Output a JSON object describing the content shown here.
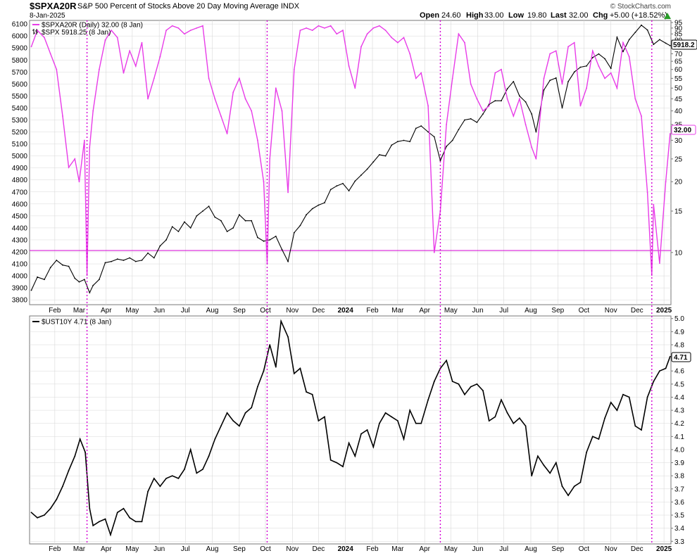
{
  "header": {
    "symbol": "$SPXA20R",
    "description": "S&P 500 Percent of Stocks Above 20 Day Moving Average INDX",
    "date": "8-Jan-2025",
    "open_label": "Open",
    "open_value": "24.60",
    "high_label": "High",
    "high_value": "33.00",
    "low_label": "Low",
    "low_value": "19.80",
    "last_label": "Last",
    "last_value": "32.00",
    "chg_label": "Chg",
    "chg_value": "+5.00 (+18.52%)",
    "watermark": "© StockCharts.com"
  },
  "colors": {
    "breadth": "#e83ce8",
    "price": "#000000",
    "grid": "#d8d8d8",
    "marker": "#d400d4",
    "frame": "#777777"
  },
  "chart_data": [
    {
      "type": "line",
      "panel": "top",
      "legend": [
        {
          "name": "$SPXA20R (Daily) 32.00 (8 Jan)",
          "color": "#e83ce8"
        },
        {
          "name": "$SPX 5918.25 (8 Jan)",
          "color": "#000000"
        }
      ],
      "x_tick_labels": [
        "Feb",
        "Mar",
        "Apr",
        "May",
        "Jun",
        "Jul",
        "Aug",
        "Sep",
        "Oct",
        "Nov",
        "Dec",
        "2024",
        "Feb",
        "Mar",
        "Apr",
        "May",
        "Jun",
        "Jul",
        "Aug",
        "Sep",
        "Oct",
        "Nov",
        "Dec",
        "2025"
      ],
      "left_axis": {
        "ticks": [
          3800,
          3900,
          4000,
          4100,
          4200,
          4300,
          4400,
          4500,
          4600,
          4700,
          4800,
          4900,
          5000,
          5100,
          5200,
          5300,
          5400,
          5500,
          5600,
          5700,
          5800,
          5900,
          6000,
          6100
        ],
        "ylim": [
          3760,
          6130
        ]
      },
      "right_axis": {
        "scale": "log",
        "ticks": [
          10,
          15,
          20,
          25,
          30,
          35,
          40,
          45,
          50,
          55,
          60,
          65,
          70,
          75,
          80,
          85,
          90,
          95
        ],
        "ylim": [
          6,
          97
        ]
      },
      "last_labels": {
        "price": "5918.2",
        "breadth": "32.00"
      },
      "horizontal_line": {
        "axis": "right",
        "value": 10.2
      },
      "series": [
        {
          "name": "$SPXA20R",
          "x": [
            "2023-01-05",
            "2023-01-12",
            "2023-01-20",
            "2023-01-27",
            "2023-02-03",
            "2023-02-10",
            "2023-02-17",
            "2023-02-24",
            "2023-03-01",
            "2023-03-07",
            "2023-03-10",
            "2023-03-13",
            "2023-03-17",
            "2023-03-24",
            "2023-03-31",
            "2023-04-07",
            "2023-04-14",
            "2023-04-21",
            "2023-04-28",
            "2023-05-05",
            "2023-05-12",
            "2023-05-19",
            "2023-05-26",
            "2023-06-02",
            "2023-06-09",
            "2023-06-16",
            "2023-06-23",
            "2023-06-30",
            "2023-07-07",
            "2023-07-14",
            "2023-07-21",
            "2023-07-28",
            "2023-08-04",
            "2023-08-11",
            "2023-08-18",
            "2023-08-25",
            "2023-09-01",
            "2023-09-08",
            "2023-09-15",
            "2023-09-22",
            "2023-09-29",
            "2023-10-03",
            "2023-10-06",
            "2023-10-13",
            "2023-10-20",
            "2023-10-27",
            "2023-11-03",
            "2023-11-10",
            "2023-11-17",
            "2023-11-24",
            "2023-12-01",
            "2023-12-08",
            "2023-12-15",
            "2023-12-22",
            "2023-12-29",
            "2024-01-05",
            "2024-01-12",
            "2024-01-19",
            "2024-01-26",
            "2024-02-02",
            "2024-02-09",
            "2024-02-16",
            "2024-02-23",
            "2024-03-01",
            "2024-03-08",
            "2024-03-15",
            "2024-03-22",
            "2024-03-28",
            "2024-04-05",
            "2024-04-12",
            "2024-04-19",
            "2024-04-26",
            "2024-05-03",
            "2024-05-10",
            "2024-05-17",
            "2024-05-24",
            "2024-05-31",
            "2024-06-07",
            "2024-06-14",
            "2024-06-21",
            "2024-06-28",
            "2024-07-05",
            "2024-07-12",
            "2024-07-19",
            "2024-07-26",
            "2024-08-02",
            "2024-08-07",
            "2024-08-16",
            "2024-08-23",
            "2024-08-30",
            "2024-09-06",
            "2024-09-13",
            "2024-09-20",
            "2024-09-27",
            "2024-10-04",
            "2024-10-11",
            "2024-10-18",
            "2024-10-25",
            "2024-11-01",
            "2024-11-08",
            "2024-11-15",
            "2024-11-22",
            "2024-11-29",
            "2024-12-06",
            "2024-12-13",
            "2024-12-18",
            "2024-12-20",
            "2024-12-27",
            "2025-01-03",
            "2025-01-08"
          ],
          "values": [
            75,
            88,
            82,
            70,
            60,
            38,
            23,
            25,
            20,
            30,
            8,
            28,
            40,
            60,
            80,
            88,
            82,
            58,
            72,
            62,
            78,
            45,
            55,
            68,
            88,
            92,
            90,
            85,
            88,
            90,
            92,
            55,
            45,
            38,
            32,
            48,
            55,
            45,
            40,
            30,
            20,
            9,
            25,
            50,
            40,
            18,
            60,
            88,
            90,
            88,
            92,
            90,
            92,
            85,
            88,
            62,
            50,
            75,
            85,
            90,
            92,
            88,
            82,
            78,
            82,
            70,
            55,
            58,
            42,
            10,
            15,
            35,
            55,
            85,
            78,
            52,
            45,
            40,
            42,
            58,
            60,
            45,
            38,
            45,
            35,
            28,
            25,
            55,
            70,
            72,
            52,
            75,
            78,
            42,
            50,
            72,
            62,
            55,
            58,
            50,
            78,
            68,
            45,
            38,
            18,
            8,
            16,
            9,
            20,
            32
          ]
        },
        {
          "name": "$SPX",
          "x": [
            "2023-01-05",
            "2023-01-12",
            "2023-01-20",
            "2023-01-27",
            "2023-02-03",
            "2023-02-10",
            "2023-02-17",
            "2023-02-24",
            "2023-03-01",
            "2023-03-07",
            "2023-03-13",
            "2023-03-17",
            "2023-03-24",
            "2023-03-31",
            "2023-04-07",
            "2023-04-14",
            "2023-04-21",
            "2023-04-28",
            "2023-05-05",
            "2023-05-12",
            "2023-05-19",
            "2023-05-26",
            "2023-06-02",
            "2023-06-09",
            "2023-06-16",
            "2023-06-23",
            "2023-06-30",
            "2023-07-07",
            "2023-07-14",
            "2023-07-21",
            "2023-07-28",
            "2023-08-04",
            "2023-08-11",
            "2023-08-18",
            "2023-08-25",
            "2023-09-01",
            "2023-09-08",
            "2023-09-15",
            "2023-09-22",
            "2023-09-29",
            "2023-10-06",
            "2023-10-13",
            "2023-10-20",
            "2023-10-27",
            "2023-11-03",
            "2023-11-10",
            "2023-11-17",
            "2023-11-24",
            "2023-12-01",
            "2023-12-08",
            "2023-12-15",
            "2023-12-22",
            "2023-12-29",
            "2024-01-05",
            "2024-01-12",
            "2024-01-19",
            "2024-01-26",
            "2024-02-02",
            "2024-02-09",
            "2024-02-16",
            "2024-02-23",
            "2024-03-01",
            "2024-03-08",
            "2024-03-15",
            "2024-03-22",
            "2024-03-28",
            "2024-04-05",
            "2024-04-12",
            "2024-04-19",
            "2024-04-26",
            "2024-05-03",
            "2024-05-10",
            "2024-05-17",
            "2024-05-24",
            "2024-05-31",
            "2024-06-07",
            "2024-06-14",
            "2024-06-21",
            "2024-06-28",
            "2024-07-05",
            "2024-07-12",
            "2024-07-19",
            "2024-07-26",
            "2024-08-02",
            "2024-08-07",
            "2024-08-16",
            "2024-08-23",
            "2024-08-30",
            "2024-09-06",
            "2024-09-13",
            "2024-09-20",
            "2024-09-27",
            "2024-10-04",
            "2024-10-11",
            "2024-10-18",
            "2024-10-25",
            "2024-11-01",
            "2024-11-08",
            "2024-11-15",
            "2024-11-22",
            "2024-11-29",
            "2024-12-06",
            "2024-12-13",
            "2024-12-20",
            "2024-12-27",
            "2025-01-03",
            "2025-01-08"
          ],
          "values": [
            3880,
            3990,
            3970,
            4070,
            4130,
            4090,
            4080,
            3980,
            3950,
            3970,
            3860,
            3920,
            3970,
            4110,
            4120,
            4140,
            4130,
            4150,
            4120,
            4130,
            4190,
            4150,
            4250,
            4300,
            4410,
            4370,
            4450,
            4400,
            4500,
            4540,
            4580,
            4490,
            4460,
            4370,
            4400,
            4510,
            4460,
            4460,
            4320,
            4290,
            4300,
            4330,
            4220,
            4120,
            4360,
            4420,
            4510,
            4560,
            4590,
            4610,
            4720,
            4750,
            4770,
            4710,
            4790,
            4840,
            4890,
            4950,
            5010,
            5000,
            5090,
            5120,
            5130,
            5120,
            5230,
            5250,
            5200,
            5160,
            4960,
            5080,
            5130,
            5220,
            5300,
            5310,
            5280,
            5350,
            5430,
            5460,
            5460,
            5560,
            5620,
            5500,
            5450,
            5350,
            5200,
            5550,
            5630,
            5650,
            5400,
            5620,
            5700,
            5740,
            5750,
            5820,
            5850,
            5810,
            5730,
            5990,
            5870,
            5970,
            6030,
            6090,
            6050,
            5930,
            5970,
            5940,
            5920
          ]
        }
      ]
    },
    {
      "type": "line",
      "panel": "bottom",
      "legend": [
        {
          "name": "$UST10Y 4.71 (8 Jan)",
          "color": "#000000"
        }
      ],
      "x_tick_labels": [
        "Feb",
        "Mar",
        "Apr",
        "May",
        "Jun",
        "Jul",
        "Aug",
        "Sep",
        "Oct",
        "Nov",
        "Dec",
        "2024",
        "Feb",
        "Mar",
        "Apr",
        "May",
        "Jun",
        "Jul",
        "Aug",
        "Sep",
        "Oct",
        "Nov",
        "Dec",
        "2025"
      ],
      "right_axis": {
        "ticks": [
          3.3,
          3.4,
          3.5,
          3.6,
          3.7,
          3.8,
          3.9,
          4.0,
          4.1,
          4.2,
          4.3,
          4.4,
          4.5,
          4.6,
          4.7,
          4.8,
          4.9,
          5.0
        ],
        "ylim": [
          3.28,
          5.02
        ]
      },
      "last_label": "4.71",
      "series": [
        {
          "name": "$UST10Y",
          "x": [
            "2023-01-05",
            "2023-01-12",
            "2023-01-20",
            "2023-01-27",
            "2023-02-03",
            "2023-02-10",
            "2023-02-17",
            "2023-02-24",
            "2023-03-02",
            "2023-03-08",
            "2023-03-13",
            "2023-03-17",
            "2023-03-24",
            "2023-03-31",
            "2023-04-06",
            "2023-04-14",
            "2023-04-21",
            "2023-04-28",
            "2023-05-05",
            "2023-05-12",
            "2023-05-19",
            "2023-05-26",
            "2023-06-02",
            "2023-06-09",
            "2023-06-16",
            "2023-06-23",
            "2023-06-30",
            "2023-07-07",
            "2023-07-14",
            "2023-07-21",
            "2023-07-28",
            "2023-08-04",
            "2023-08-11",
            "2023-08-18",
            "2023-08-25",
            "2023-09-01",
            "2023-09-08",
            "2023-09-15",
            "2023-09-22",
            "2023-09-29",
            "2023-10-06",
            "2023-10-13",
            "2023-10-19",
            "2023-10-27",
            "2023-11-03",
            "2023-11-10",
            "2023-11-17",
            "2023-11-24",
            "2023-12-01",
            "2023-12-08",
            "2023-12-15",
            "2023-12-22",
            "2023-12-29",
            "2024-01-05",
            "2024-01-12",
            "2024-01-19",
            "2024-01-26",
            "2024-02-02",
            "2024-02-09",
            "2024-02-16",
            "2024-02-23",
            "2024-03-01",
            "2024-03-08",
            "2024-03-15",
            "2024-03-22",
            "2024-03-28",
            "2024-04-05",
            "2024-04-12",
            "2024-04-19",
            "2024-04-26",
            "2024-05-03",
            "2024-05-10",
            "2024-05-17",
            "2024-05-24",
            "2024-05-31",
            "2024-06-07",
            "2024-06-14",
            "2024-06-21",
            "2024-06-28",
            "2024-07-05",
            "2024-07-12",
            "2024-07-19",
            "2024-07-26",
            "2024-08-02",
            "2024-08-09",
            "2024-08-16",
            "2024-08-23",
            "2024-08-30",
            "2024-09-06",
            "2024-09-13",
            "2024-09-20",
            "2024-09-27",
            "2024-10-04",
            "2024-10-11",
            "2024-10-18",
            "2024-10-25",
            "2024-11-01",
            "2024-11-08",
            "2024-11-15",
            "2024-11-22",
            "2024-11-29",
            "2024-12-06",
            "2024-12-13",
            "2024-12-20",
            "2024-12-27",
            "2025-01-03",
            "2025-01-08"
          ],
          "values": [
            3.52,
            3.48,
            3.5,
            3.55,
            3.62,
            3.72,
            3.84,
            3.95,
            4.08,
            3.98,
            3.55,
            3.42,
            3.45,
            3.47,
            3.35,
            3.52,
            3.55,
            3.48,
            3.45,
            3.45,
            3.68,
            3.78,
            3.72,
            3.78,
            3.8,
            3.78,
            3.85,
            4.0,
            3.82,
            3.85,
            3.95,
            4.08,
            4.18,
            4.28,
            4.22,
            4.18,
            4.28,
            4.32,
            4.48,
            4.6,
            4.8,
            4.63,
            4.98,
            4.86,
            4.58,
            4.62,
            4.44,
            4.42,
            4.22,
            4.25,
            3.92,
            3.9,
            3.87,
            4.05,
            3.95,
            4.12,
            4.15,
            4.02,
            4.2,
            4.28,
            4.25,
            4.22,
            4.08,
            4.3,
            4.2,
            4.2,
            4.38,
            4.52,
            4.62,
            4.68,
            4.52,
            4.5,
            4.42,
            4.48,
            4.5,
            4.45,
            4.22,
            4.25,
            4.38,
            4.28,
            4.2,
            4.24,
            4.18,
            3.8,
            3.95,
            3.88,
            3.82,
            3.9,
            3.72,
            3.65,
            3.72,
            3.75,
            3.98,
            4.1,
            4.08,
            4.24,
            4.36,
            4.3,
            4.42,
            4.4,
            4.18,
            4.15,
            4.4,
            4.52,
            4.6,
            4.62,
            4.71
          ]
        }
      ]
    }
  ],
  "markers": {
    "label": "vertical dotted lines",
    "dates": [
      "2023-03-10",
      "2023-10-03",
      "2024-04-19",
      "2024-12-18"
    ]
  }
}
